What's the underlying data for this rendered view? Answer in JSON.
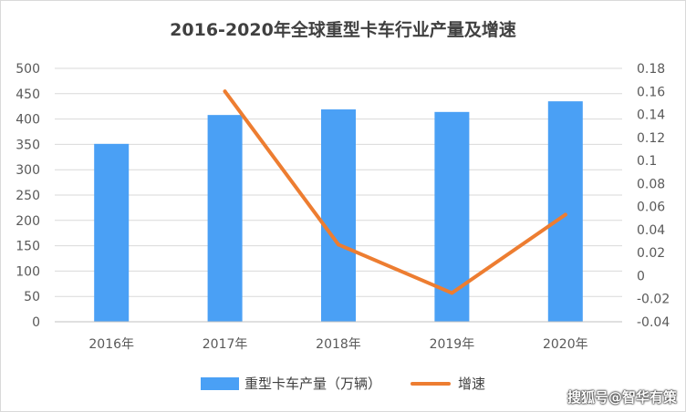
{
  "chart_data": {
    "type": "bar+line",
    "title": "2016-2020年全球重型卡车行业产量及增速",
    "categories": [
      "2016年",
      "2017年",
      "2018年",
      "2019年",
      "2020年"
    ],
    "series": [
      {
        "name": "重型卡车产量（万辆）",
        "type": "bar",
        "axis": "left",
        "color": "#4aa0f5",
        "values": [
          351,
          408,
          419,
          414,
          435
        ]
      },
      {
        "name": "增速",
        "type": "line",
        "axis": "right",
        "color": "#ed7d31",
        "values": [
          null,
          0.16,
          0.027,
          -0.015,
          0.053
        ]
      }
    ],
    "y_left": {
      "min": 0,
      "max": 500,
      "step": 50,
      "ticks": [
        "500",
        "450",
        "400",
        "350",
        "300",
        "250",
        "200",
        "150",
        "100",
        "50",
        "0"
      ]
    },
    "y_right": {
      "min": -0.04,
      "max": 0.18,
      "step": 0.02,
      "ticks": [
        "0.18",
        "0.16",
        "0.14",
        "0.12",
        "0.1",
        "0.08",
        "0.06",
        "0.04",
        "0.02",
        "0",
        "-0.02",
        "-0.04"
      ]
    },
    "grid": true,
    "legend_position": "bottom"
  },
  "watermark": "搜狐号@智华有策"
}
